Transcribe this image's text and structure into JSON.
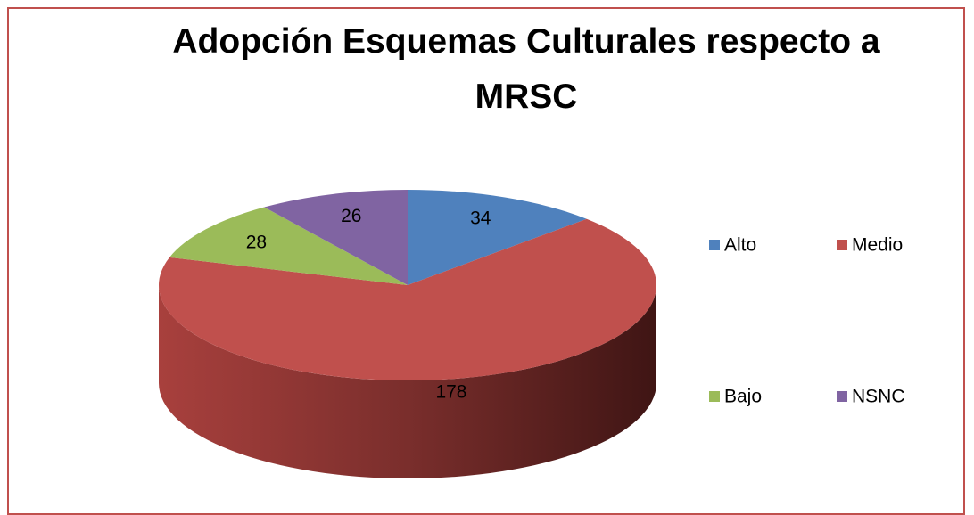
{
  "chart_data": {
    "type": "pie3d",
    "title": "Adopción Esquemas Culturales respecto a MRSC",
    "categories": [
      "Alto",
      "Medio",
      "Bajo",
      "NSNC"
    ],
    "values": [
      34,
      178,
      28,
      26
    ],
    "colors": [
      "#4f81bd",
      "#c0504d",
      "#9bbb59",
      "#8064a2"
    ],
    "legend": "right"
  }
}
